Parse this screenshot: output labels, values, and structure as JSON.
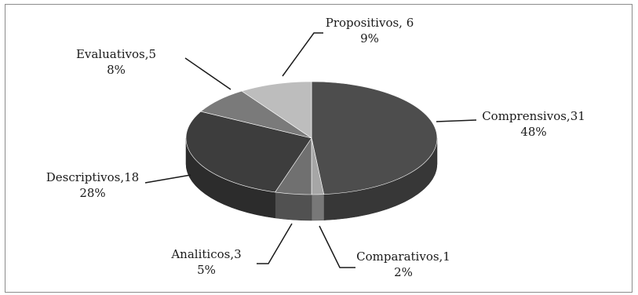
{
  "chart_data": {
    "type": "pie",
    "title": "",
    "slices": [
      {
        "label": "Comprensivos",
        "value": 31,
        "percent": "48%",
        "color": "#4d4d4d",
        "label_text": "Comprensivos,31"
      },
      {
        "label": "Comparativos",
        "value": 1,
        "percent": "2%",
        "color": "#a6a6a6",
        "label_text": "Comparativos,1"
      },
      {
        "label": "Analiticos",
        "value": 3,
        "percent": "5%",
        "color": "#707070",
        "label_text": "Analiticos,3"
      },
      {
        "label": "Descriptivos",
        "value": 18,
        "percent": "28%",
        "color": "#3d3d3d",
        "label_text": "Descriptivos,18"
      },
      {
        "label": "Evaluativos",
        "value": 5,
        "percent": "8%",
        "color": "#7a7a7a",
        "label_text": "Evaluativos,5"
      },
      {
        "label": "Propositivos",
        "value": 6,
        "percent": "9%",
        "color": "#bdbdbd",
        "label_text": "Propositivos, 6"
      }
    ],
    "start": "top",
    "direction": "clockwise",
    "style": "3d-perspective",
    "legend": "none"
  }
}
